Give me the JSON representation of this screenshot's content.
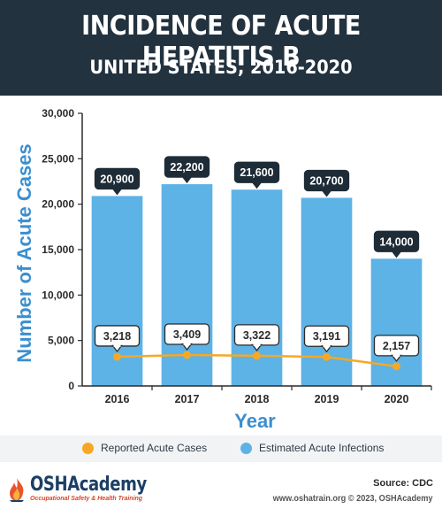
{
  "header": {
    "title": "INCIDENCE OF ACUTE HEPATITIS B",
    "subtitle": "UNITED STATES, 2016-2020"
  },
  "colors": {
    "header_bg": "#23323f",
    "bar": "#5db2e6",
    "line": "#f7a823",
    "callout": "#1e2c37",
    "axis_title": "#3b8fd0"
  },
  "legend": {
    "reported": "Reported Acute Cases",
    "estimated": "Estimated Acute Infections"
  },
  "footer": {
    "source": "Source: CDC",
    "copyright": "www.oshatrain.org © 2023, OSHAcademy",
    "logo_text": "OSHAcademy",
    "logo_subtext": "Occupational Safety & Health Training",
    "logo_icon": "flame-icon"
  },
  "chart_data": {
    "type": "bar",
    "title": "INCIDENCE OF ACUTE HEPATITIS B",
    "subtitle": "UNITED STATES, 2016-2020",
    "xlabel": "Year",
    "ylabel": "Number of Acute Cases",
    "categories": [
      "2016",
      "2017",
      "2018",
      "2019",
      "2020"
    ],
    "ylim": [
      0,
      30000
    ],
    "yticks": [
      0,
      5000,
      10000,
      15000,
      20000,
      25000,
      30000
    ],
    "ytick_labels": [
      "0",
      "5,000",
      "10,000",
      "15,000",
      "20,000",
      "25,000",
      "30,000"
    ],
    "grid": false,
    "legend_position": "bottom",
    "series": [
      {
        "name": "Estimated Acute Infections",
        "type": "bar",
        "values": [
          20900,
          22200,
          21600,
          20700,
          14000
        ],
        "labels": [
          "20,900",
          "22,200",
          "21,600",
          "20,700",
          "14,000"
        ]
      },
      {
        "name": "Reported Acute Cases",
        "type": "line",
        "values": [
          3218,
          3409,
          3322,
          3191,
          2157
        ],
        "labels": [
          "3,218",
          "3,409",
          "3,322",
          "3,191",
          "2,157"
        ]
      }
    ]
  }
}
